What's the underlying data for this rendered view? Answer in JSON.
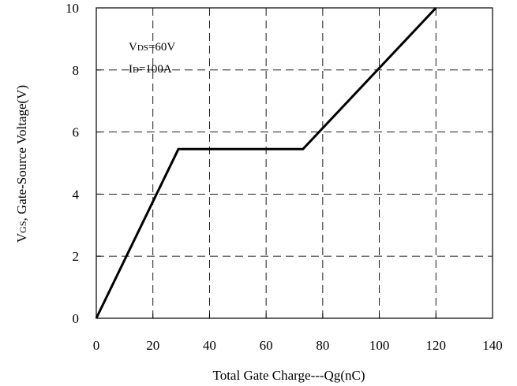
{
  "chart_data": {
    "type": "line",
    "xlabel": "Total Gate Charge---Qg(nC)",
    "ylabel_main": "V",
    "ylabel_sub": "GS",
    "ylabel_rest": ", Gate-Source Voltage(V)",
    "xlim": [
      0,
      140
    ],
    "ylim": [
      0,
      10
    ],
    "xticks": [
      0,
      20,
      40,
      60,
      80,
      100,
      120,
      140
    ],
    "yticks": [
      0,
      2,
      4,
      6,
      8,
      10
    ],
    "grid": "dashed",
    "annotations": [
      {
        "main": "V",
        "sub": "DS",
        "rest": "=60V"
      },
      {
        "main": "I",
        "sub": "D",
        "rest": "=100A"
      }
    ],
    "series": [
      {
        "x": [
          0,
          29,
          73,
          120
        ],
        "y": [
          0,
          5.45,
          5.45,
          10
        ]
      }
    ],
    "line_color": "#000000"
  }
}
